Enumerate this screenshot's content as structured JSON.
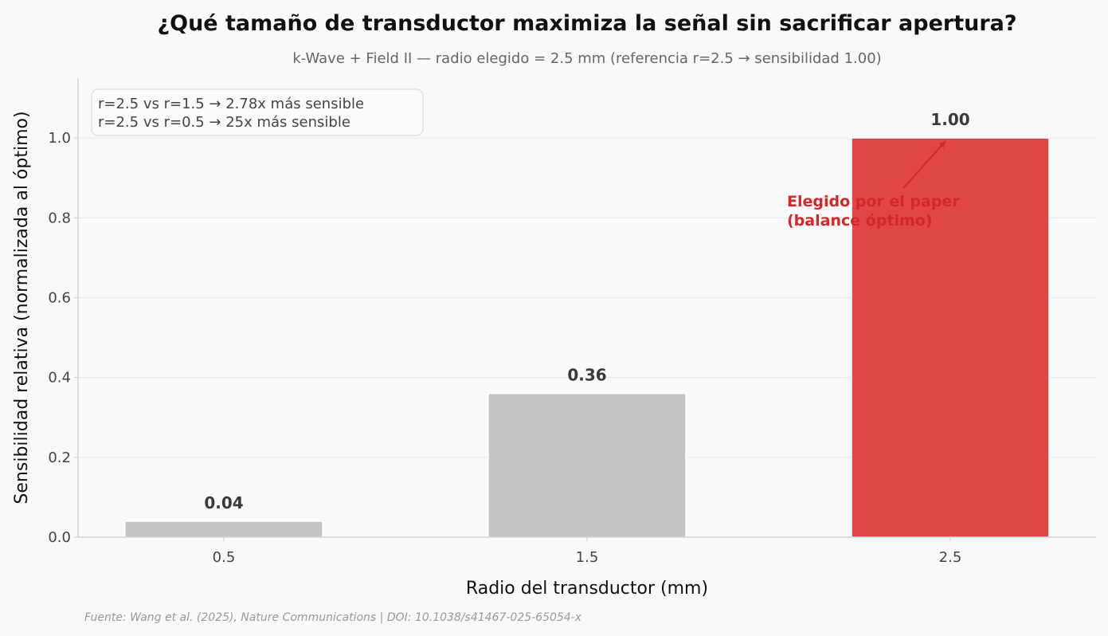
{
  "chart_data": {
    "type": "bar",
    "title": "¿Qué tamaño de transductor maximiza la señal sin sacrificar apertura?",
    "subtitle": "k-Wave + Field II — radio elegido = 2.5 mm (referencia r=2.5 → sensibilidad 1.00)",
    "xlabel": "Radio del transductor (mm)",
    "ylabel": "Sensibilidad relativa (normalizada al óptimo)",
    "categories": [
      "0.5",
      "1.5",
      "2.5"
    ],
    "values": [
      0.04,
      0.36,
      1.0
    ],
    "value_labels": [
      "0.04",
      "0.36",
      "1.00"
    ],
    "highlight_index": 2,
    "colors": {
      "default": "#c4c4c4",
      "highlight": "#e04646",
      "annotation": "#d62728"
    },
    "ylim": [
      0,
      1.15
    ],
    "yticks": [
      0,
      0.2,
      0.4,
      0.6,
      0.8,
      1.0
    ],
    "ytick_labels": [
      "0.0",
      "0.2",
      "0.4",
      "0.6",
      "0.8",
      "1.0"
    ],
    "grid": true,
    "annotation": {
      "lines": [
        "Elegido por el paper",
        "(balance óptimo)"
      ],
      "target_index": 2
    },
    "legend_lines": [
      "r=2.5 vs r=1.5  →  2.78x más sensible",
      "r=2.5 vs r=0.5  →  25x más sensible"
    ],
    "legend_position": "top-left",
    "source": "Fuente: Wang et al. (2025), Nature Communications | DOI: 10.1038/s41467-025-65054-x"
  }
}
